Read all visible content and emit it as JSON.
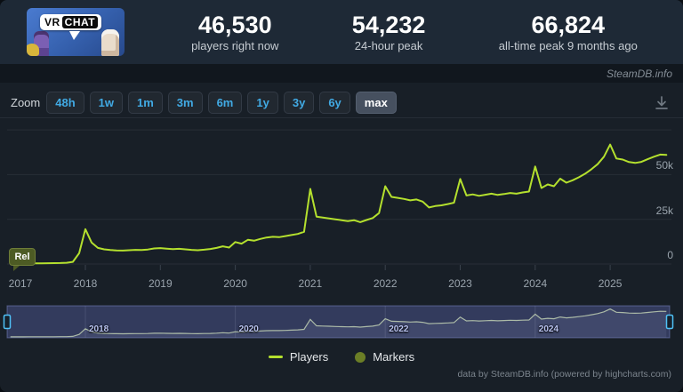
{
  "header": {
    "logo": {
      "vr": "VR",
      "chat": "CHAT"
    },
    "stats": [
      {
        "value": "46,530",
        "label": "players right now"
      },
      {
        "value": "54,232",
        "label": "24-hour peak"
      },
      {
        "value": "66,824",
        "label": "all-time peak 9 months ago"
      }
    ]
  },
  "branding": "SteamDB.info",
  "toolbar": {
    "zoom_label": "Zoom",
    "ranges": [
      "48h",
      "1w",
      "1m",
      "3m",
      "6m",
      "1y",
      "3y",
      "6y",
      "max"
    ],
    "active_range": "max",
    "download_icon": "download-chart"
  },
  "chart_data": {
    "type": "line",
    "series_name": "Players",
    "start_year": 2017,
    "interval_months": 1,
    "unit": "concurrent players",
    "values": [
      300,
      300,
      300,
      350,
      400,
      400,
      450,
      500,
      550,
      700,
      1200,
      6000,
      19500,
      12000,
      9000,
      8200,
      7800,
      7600,
      7500,
      7700,
      7900,
      7800,
      8100,
      8700,
      8900,
      8600,
      8300,
      8500,
      8200,
      7900,
      7700,
      8000,
      8400,
      9000,
      9900,
      9200,
      12300,
      11400,
      13500,
      13000,
      14000,
      14800,
      15200,
      15000,
      15600,
      16200,
      16800,
      18000,
      42000,
      26500,
      26000,
      25500,
      25000,
      24500,
      24000,
      24500,
      23400,
      24600,
      25700,
      28500,
      43500,
      37500,
      37000,
      36400,
      35600,
      36100,
      34900,
      31600,
      32400,
      32800,
      33500,
      34300,
      47500,
      38300,
      38900,
      38100,
      38700,
      39300,
      38600,
      39100,
      39700,
      39300,
      40000,
      40500,
      54500,
      42500,
      44500,
      43500,
      47700,
      45500,
      46800,
      48500,
      50500,
      53000,
      55800,
      60000,
      66800,
      59000,
      58400,
      57000,
      56500,
      57100,
      58600,
      60000,
      61200,
      61000
    ],
    "ylim": [
      0,
      78000
    ],
    "yticks": [
      {
        "value": 0,
        "label": "0"
      },
      {
        "value": 25000,
        "label": "25k"
      },
      {
        "value": 50000,
        "label": "50k"
      },
      {
        "value": 75000,
        "label": ""
      }
    ],
    "xticks": [
      "2017",
      "2018",
      "2019",
      "2020",
      "2021",
      "2022",
      "2023",
      "2024",
      "2025"
    ],
    "release_flag": {
      "label": "Rel",
      "year": 2017.08
    },
    "navigator": {
      "labels": [
        "2018",
        "2020",
        "2022",
        "2024"
      ],
      "selected_range": "all"
    },
    "grid": true,
    "legend_position": "bottom"
  },
  "legend": [
    {
      "label": "Players",
      "swatch": "line"
    },
    {
      "label": "Markers",
      "swatch": "circle"
    }
  ],
  "footer": "data by SteamDB.info (powered by highcharts.com)",
  "colors": {
    "players_line": "#b4e02e",
    "navigator_line": "#d4e49a",
    "navigator_fill": "rgba(235,240,245,0.10)",
    "selection_overlay": "rgba(99,112,190,0.36)",
    "selection_border": "rgba(139,150,222,0.45)",
    "handle_border": "#4fc2f7",
    "markers": "#6b7e26",
    "gridline": "#272e37",
    "tick": "#3a424c"
  }
}
